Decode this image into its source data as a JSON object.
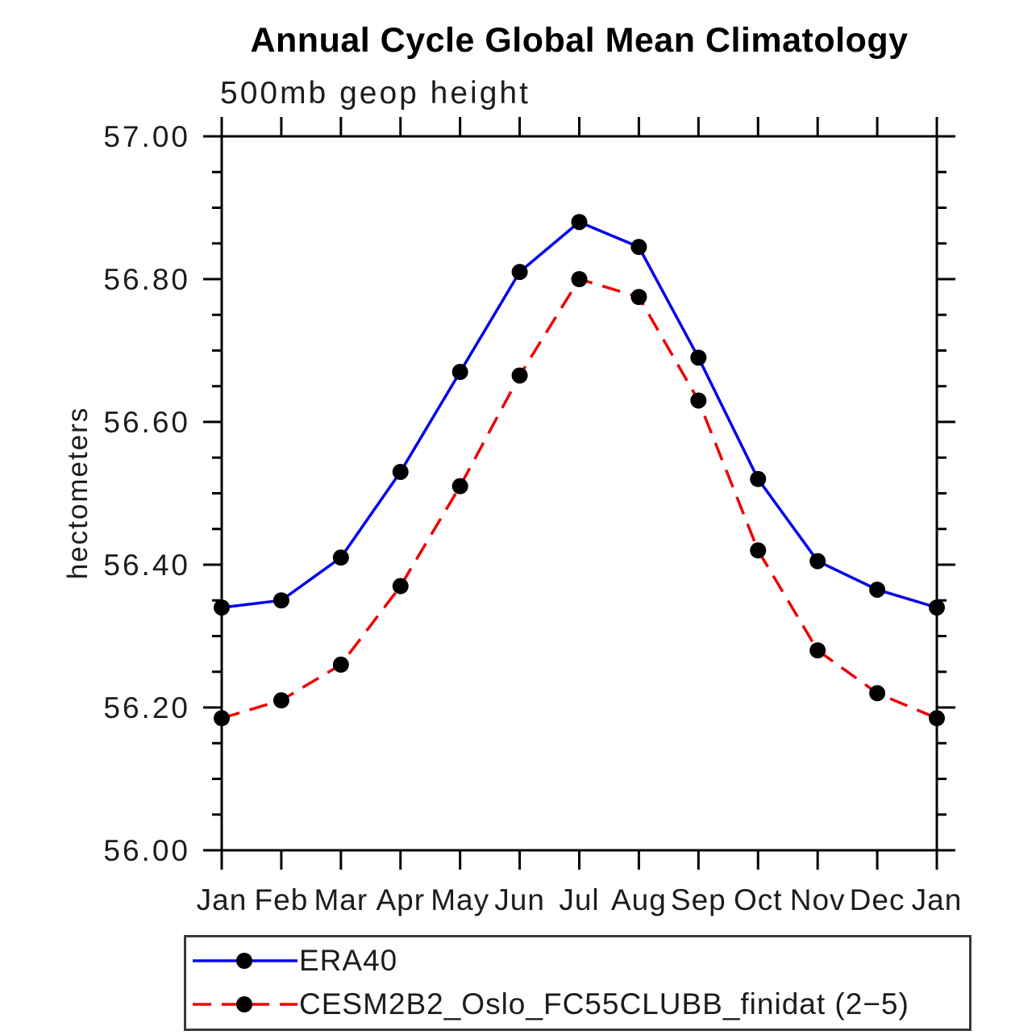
{
  "chart_data": {
    "type": "line",
    "title": "Annual Cycle Global Mean Climatology",
    "subtitle": "500mb geop height",
    "ylabel": "hectometers",
    "xlabel": "",
    "categories": [
      "Jan",
      "Feb",
      "Mar",
      "Apr",
      "May",
      "Jun",
      "Jul",
      "Aug",
      "Sep",
      "Oct",
      "Nov",
      "Dec",
      "Jan"
    ],
    "series": [
      {
        "name": "ERA40",
        "line_style": "solid",
        "line_color": "#0000ee",
        "marker": "filled-circle",
        "marker_color": "#000000",
        "values": [
          56.34,
          56.35,
          56.41,
          56.53,
          56.67,
          56.81,
          56.88,
          56.845,
          56.69,
          56.52,
          56.405,
          56.365,
          56.34
        ]
      },
      {
        "name": "CESM2B2_Oslo_FC55CLUBB_finidat (2−5)",
        "line_style": "dashed",
        "line_color": "#ee0000",
        "marker": "filled-circle",
        "marker_color": "#000000",
        "values": [
          56.185,
          56.21,
          56.26,
          56.37,
          56.51,
          56.665,
          56.8,
          56.775,
          56.63,
          56.42,
          56.28,
          56.22,
          56.185
        ]
      }
    ],
    "ylim": [
      56.0,
      57.0
    ],
    "ytick_major": [
      56.0,
      56.2,
      56.4,
      56.6,
      56.8,
      57.0
    ],
    "ytick_major_labels": [
      "56.00",
      "56.20",
      "56.40",
      "56.60",
      "56.80",
      "57.00"
    ],
    "ytick_minor_step": 0.05,
    "axis_color": "#000000",
    "grid": false,
    "frame": true,
    "legend_position": "bottom-left-box"
  }
}
